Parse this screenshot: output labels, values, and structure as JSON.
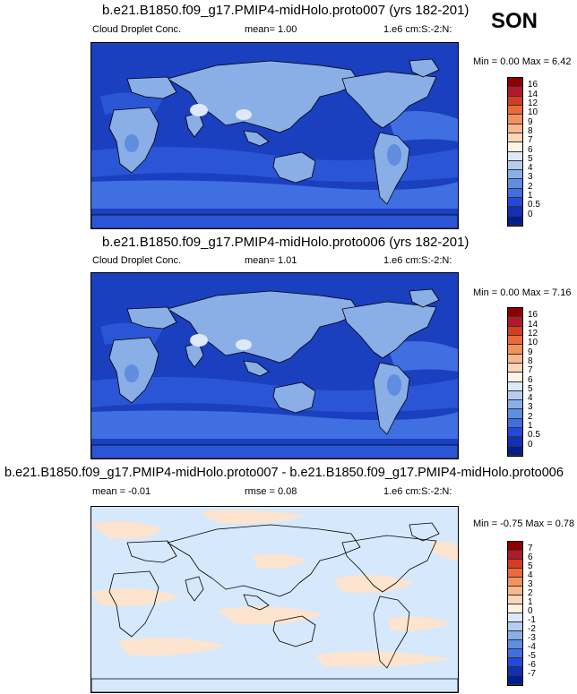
{
  "season": "SON",
  "panels": [
    {
      "title": "b.e21.B1850.f09_g17.PMIP4-midHolo.proto007 (yrs 182-201)",
      "variable": "Cloud Droplet Conc.",
      "stat": "mean=   1.00",
      "units": "1.e6 cm:S:-2:N:",
      "minmax": "Min =  0.00 Max =  6.42",
      "colorbar": {
        "labels": [
          "16",
          "14",
          "12",
          "10",
          "9",
          "8",
          "7",
          "6",
          "5",
          "4",
          "3",
          "2",
          "1",
          "0.5",
          "0"
        ],
        "colors": [
          "#8b0000",
          "#b2182b",
          "#d43d1f",
          "#ea6a3c",
          "#f4925d",
          "#f8b78f",
          "#fcd5ba",
          "#fff3e8",
          "#dde9f8",
          "#b5ccef",
          "#8aaee6",
          "#5f8de0",
          "#3f6fe0",
          "#2449d6",
          "#1330b4",
          "#001e8e"
        ]
      }
    },
    {
      "title": "b.e21.B1850.f09_g17.PMIP4-midHolo.proto006 (yrs 182-201)",
      "variable": "Cloud Droplet Conc.",
      "stat": "mean=   1.01",
      "units": "1.e6 cm:S:-2:N:",
      "minmax": "Min =  0.00 Max =  7.16",
      "colorbar": {
        "labels": [
          "16",
          "14",
          "12",
          "10",
          "9",
          "8",
          "7",
          "6",
          "5",
          "4",
          "3",
          "2",
          "1",
          "0.5",
          "0"
        ],
        "colors": [
          "#8b0000",
          "#b2182b",
          "#d43d1f",
          "#ea6a3c",
          "#f4925d",
          "#f8b78f",
          "#fcd5ba",
          "#fff3e8",
          "#dde9f8",
          "#b5ccef",
          "#8aaee6",
          "#5f8de0",
          "#3f6fe0",
          "#2449d6",
          "#1330b4",
          "#001e8e"
        ]
      }
    },
    {
      "title": "b.e21.B1850.f09_g17.PMIP4-midHolo.proto007 - b.e21.B1850.f09_g17.PMIP4-midHolo.proto006",
      "mean": "mean =  -0.01",
      "rmse": "rmse =   0.08",
      "units": "1.e6 cm:S:-2:N:",
      "minmax": "Min = -0.75 Max =  0.78",
      "colorbar": {
        "labels": [
          "7",
          "6",
          "5",
          "4",
          "3",
          "2",
          "1",
          "0",
          "-1",
          "-2",
          "-3",
          "-4",
          "-5",
          "-6",
          "-7"
        ],
        "colors": [
          "#8b0000",
          "#b2182b",
          "#d43d1f",
          "#ea6a3c",
          "#f4925d",
          "#f8b78f",
          "#fcd5ba",
          "#fff0e0",
          "#dde9f8",
          "#b5ccef",
          "#8aaee6",
          "#5f8de0",
          "#3f6fe0",
          "#2449d6",
          "#1330b4",
          "#001e8e"
        ]
      }
    }
  ],
  "map_colors": {
    "ocean_deep": "#1a3fbf",
    "ocean_mid": "#2a56d6",
    "ocean_light": "#3f6fe0",
    "ocean_pale": "#5f8de0",
    "land_pale": "#8aaee6",
    "land_hi": "#dde9f8",
    "diff_neg": "#d6e8fb",
    "diff_pos": "#fce4cf"
  }
}
